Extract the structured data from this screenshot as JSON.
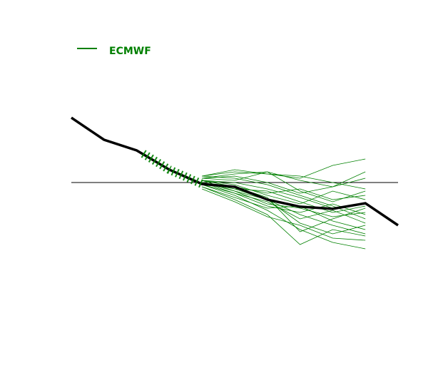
{
  "chart_data": {
    "type": "line",
    "xlim": [
      0,
      10
    ],
    "ylim": [
      -8,
      8
    ],
    "hline": 0,
    "observed": {
      "color": "#000000",
      "x": [
        0,
        1,
        2,
        3,
        4,
        5,
        6,
        7,
        8,
        9,
        10
      ],
      "values": [
        3.03,
        2.0,
        1.5,
        0.6,
        -0.07,
        -0.2,
        -0.8,
        -1.13,
        -1.23,
        -0.97,
        -2.0
      ]
    },
    "recent": {
      "color": "#008000",
      "x": [
        2.2,
        3,
        4
      ],
      "values": [
        1.35,
        0.6,
        -0.07
      ]
    },
    "ensemble": {
      "name": "ECMWF",
      "color": "#008000",
      "x": [
        4,
        5,
        6,
        7,
        8,
        9
      ],
      "members": [
        [
          0.3,
          0.6,
          0.4,
          0.2,
          0.8,
          1.1
        ],
        [
          0.2,
          0.4,
          0.5,
          0.1,
          -0.2,
          0.5
        ],
        [
          0.1,
          0.0,
          -0.3,
          -0.7,
          -1.2,
          -1.0
        ],
        [
          0.0,
          -0.3,
          -0.8,
          -1.5,
          -2.0,
          -2.4
        ],
        [
          -0.1,
          -0.6,
          -1.3,
          -2.2,
          -2.8,
          -3.1
        ],
        [
          -0.2,
          -0.8,
          -1.5,
          -2.9,
          -2.2,
          -2.5
        ],
        [
          0.3,
          0.5,
          0.4,
          0.3,
          0.0,
          -0.3
        ],
        [
          0.1,
          -0.2,
          -0.5,
          -0.3,
          -0.8,
          -0.6
        ],
        [
          0.0,
          -0.4,
          -1.0,
          -1.2,
          -1.6,
          -1.4
        ],
        [
          -0.1,
          -0.5,
          -0.9,
          -1.7,
          -1.3,
          -1.9
        ],
        [
          0.2,
          0.1,
          0.5,
          -0.4,
          -0.9,
          -0.4
        ],
        [
          -0.3,
          -0.9,
          -1.6,
          -2.0,
          -2.6,
          -2.7
        ],
        [
          0.1,
          -0.1,
          -0.6,
          -1.0,
          -0.4,
          -0.8
        ],
        [
          0.0,
          -0.3,
          -0.4,
          -0.9,
          -1.4,
          -1.1
        ],
        [
          -0.2,
          -0.7,
          -1.2,
          -1.1,
          -1.8,
          -2.2
        ],
        [
          0.2,
          0.3,
          0.0,
          -0.5,
          -0.2,
          0.2
        ],
        [
          0.0,
          -0.5,
          -1.1,
          -1.4,
          -1.0,
          -1.5
        ],
        [
          -0.1,
          -0.2,
          -0.7,
          -2.3,
          -1.7,
          -1.2
        ],
        [
          0.3,
          0.2,
          -0.1,
          -0.6,
          -1.1,
          -1.7
        ],
        [
          0.1,
          -0.4,
          -0.8,
          -1.9,
          -2.4,
          -2.0
        ]
      ]
    }
  }
}
